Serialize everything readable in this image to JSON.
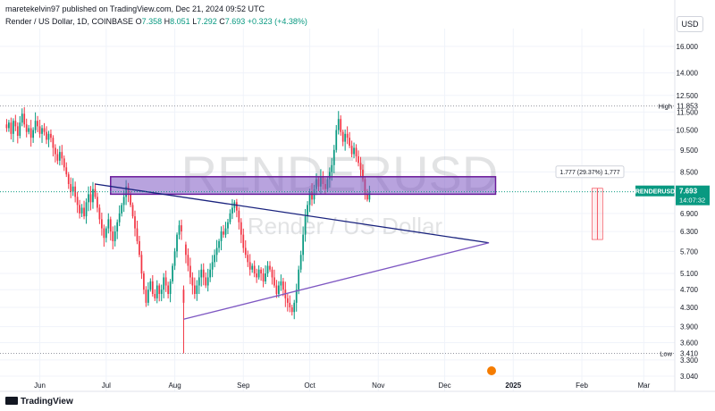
{
  "header": {
    "publisher_line": "maretekelvin97 published on TradingView.com, Dec 21, 2024 09:52 UTC",
    "symbol_line": "Render / US Dollar, 1D, COINBASE",
    "ohlc": {
      "o_label": "O",
      "o": "7.358",
      "h_label": "H",
      "h": "8.051",
      "l_label": "L",
      "l": "7.292",
      "c_label": "C",
      "c": "7.693",
      "change": "+0.323 (+4.38%)"
    },
    "currency_button": "USD"
  },
  "watermark": {
    "ticker": "RENDERUSD",
    "name": "Render / US Dollar"
  },
  "footer": {
    "logo_text": "TradingView"
  },
  "colors": {
    "up": "#089981",
    "down": "#f23645",
    "zone": "#7e57c2",
    "trend_upper": "#1a237e",
    "trend_lower": "#7e57c2"
  },
  "chart_data": {
    "type": "candlestick",
    "y_axis": {
      "scale": "log",
      "ticks": [
        "16.000",
        "14.000",
        "12.500",
        "11.500",
        "10.500",
        "9.500",
        "8.500",
        "6.900",
        "6.300",
        "5.700",
        "5.100",
        "4.700",
        "4.300",
        "3.900",
        "3.600",
        "3.300",
        "3.040"
      ],
      "range": [
        3.0,
        17.5
      ]
    },
    "x_axis": {
      "ticks": [
        "Jun",
        "Jul",
        "Aug",
        "Sep",
        "Oct",
        "Nov",
        "Dec",
        "2025",
        "Feb",
        "Mar"
      ],
      "tick_dates": [
        "2024-06-01",
        "2024-07-01",
        "2024-08-01",
        "2024-09-01",
        "2024-10-01",
        "2024-11-01",
        "2024-12-01",
        "2025-01-01",
        "2025-02-01",
        "2025-03-01"
      ],
      "range": [
        "2024-05-14",
        "2025-03-15"
      ]
    },
    "candles": {
      "start_date": "2024-05-17",
      "close": [
        10.6,
        10.9,
        10.3,
        11.0,
        10.7,
        10.2,
        10.9,
        11.4,
        10.8,
        10.4,
        10.6,
        10.1,
        10.5,
        11.0,
        10.7,
        10.3,
        10.6,
        10.4,
        10.0,
        10.3,
        10.1,
        9.6,
        9.3,
        9.0,
        9.4,
        9.1,
        8.7,
        8.4,
        8.0,
        7.7,
        7.9,
        7.5,
        7.2,
        6.9,
        7.1,
        6.8,
        7.3,
        7.6,
        7.3,
        7.8,
        7.5,
        7.1,
        6.7,
        6.4,
        6.1,
        6.4,
        6.7,
        6.3,
        6.0,
        6.3,
        6.6,
        6.9,
        7.2,
        7.5,
        7.9,
        7.6,
        7.2,
        6.8,
        6.4,
        6.0,
        5.6,
        5.1,
        4.7,
        4.4,
        4.7,
        4.9,
        4.6,
        4.5,
        4.8,
        4.6,
        4.7,
        5.0,
        4.8,
        4.6,
        4.9,
        5.3,
        5.7,
        6.2,
        6.5,
        6.3,
        5.9,
        5.6,
        5.3,
        5.0,
        4.8,
        4.6,
        4.8,
        5.0,
        5.2,
        5.0,
        4.8,
        5.0,
        5.2,
        5.4,
        5.6,
        5.8,
        6.0,
        6.3,
        6.2,
        6.4,
        6.6,
        6.9,
        7.1,
        7.3,
        7.0,
        6.6,
        6.2,
        5.8,
        5.6,
        5.4,
        5.2,
        5.3,
        5.1,
        5.0,
        5.2,
        5.1,
        4.9,
        5.1,
        5.3,
        5.2,
        5.0,
        4.8,
        4.6,
        4.8,
        4.9,
        4.7,
        4.5,
        4.4,
        4.3,
        4.2,
        4.4,
        4.7,
        5.2,
        5.6,
        6.2,
        6.8,
        7.2,
        7.7,
        7.4,
        7.8,
        8.2,
        7.9,
        8.3,
        8.0,
        7.8,
        8.2,
        8.5,
        8.8,
        9.5,
        10.5,
        11.1,
        10.4,
        9.9,
        10.3,
        10.1,
        9.7,
        9.3,
        9.6,
        9.2,
        8.9,
        8.6,
        8.2,
        7.6,
        7.4,
        7.69
      ],
      "all_time_high_marker": 11.853,
      "all_time_low_marker": 3.41,
      "sample_ohlc": [
        {
          "date": "2024-05-17",
          "open": 10.8,
          "high": 11.1,
          "low": 10.4,
          "close": 10.6
        },
        {
          "date": "2024-08-05",
          "open": 4.7,
          "high": 4.8,
          "low": 3.41,
          "close": 4.4
        },
        {
          "date": "2024-12-05",
          "open": 10.5,
          "high": 11.853,
          "low": 10.3,
          "close": 11.1
        },
        {
          "date": "2024-12-21",
          "open": 7.358,
          "high": 8.051,
          "low": 7.292,
          "close": 7.693
        }
      ]
    },
    "annotations": {
      "high_label": "High",
      "high_value": "11.853",
      "low_label": "Low",
      "low_value": "3.410",
      "resistance_zone": {
        "from": 7.6,
        "to": 8.3,
        "start": "2024-07-03",
        "end": "2024-12-24"
      },
      "trendline_upper": {
        "from": [
          "2024-06-26",
          8.0
        ],
        "to": [
          "2024-12-21",
          5.95
        ]
      },
      "trendline_lower": {
        "from": [
          "2024-08-05",
          4.05
        ],
        "to": [
          "2024-12-21",
          5.95
        ]
      },
      "measure": {
        "label": "1.777 (29.37%) 1,777",
        "from": 6.05,
        "to": 7.83,
        "date": "2025-02-08"
      },
      "price_label": {
        "symbol": "RENDERUSD",
        "price": "7.693",
        "countdown": "14:07:32"
      }
    }
  }
}
